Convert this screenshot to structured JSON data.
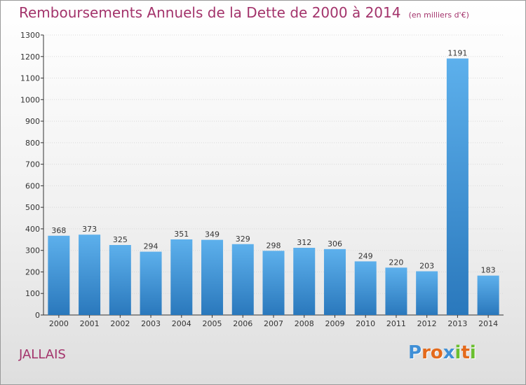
{
  "colors": {
    "title": "#a3336b",
    "bar_light": "#5aaeea",
    "bar_dark": "#2d7cc0",
    "axis": "#333333",
    "grid": "#d9d9d9"
  },
  "header": {
    "title": "Remboursements Annuels de la Dette de 2000 à 2014",
    "unit": "(en milliers d'€)"
  },
  "commune": "JALLAIS",
  "logo": {
    "letters": [
      "P",
      "r",
      "o",
      "x",
      "i",
      "t",
      "i"
    ],
    "colors": [
      "#3f8fd6",
      "#e46a1c",
      "#e46a1c",
      "#3f8fd6",
      "#6abf2f",
      "#e46a1c",
      "#6abf2f"
    ]
  },
  "chart_data": {
    "type": "bar",
    "title": "Remboursements Annuels de la Dette de 2000 à 2014",
    "xlabel": "",
    "ylabel": "",
    "categories": [
      "2000",
      "2001",
      "2002",
      "2003",
      "2004",
      "2005",
      "2006",
      "2007",
      "2008",
      "2009",
      "2010",
      "2011",
      "2012",
      "2013",
      "2014"
    ],
    "values": [
      368,
      373,
      325,
      294,
      351,
      349,
      329,
      298,
      312,
      306,
      249,
      220,
      203,
      1191,
      183
    ],
    "ylim": [
      0,
      1300
    ],
    "yticks": [
      0,
      100,
      200,
      300,
      400,
      500,
      600,
      700,
      800,
      900,
      1000,
      1100,
      1200,
      1300
    ],
    "grid": true,
    "legend": "none"
  }
}
